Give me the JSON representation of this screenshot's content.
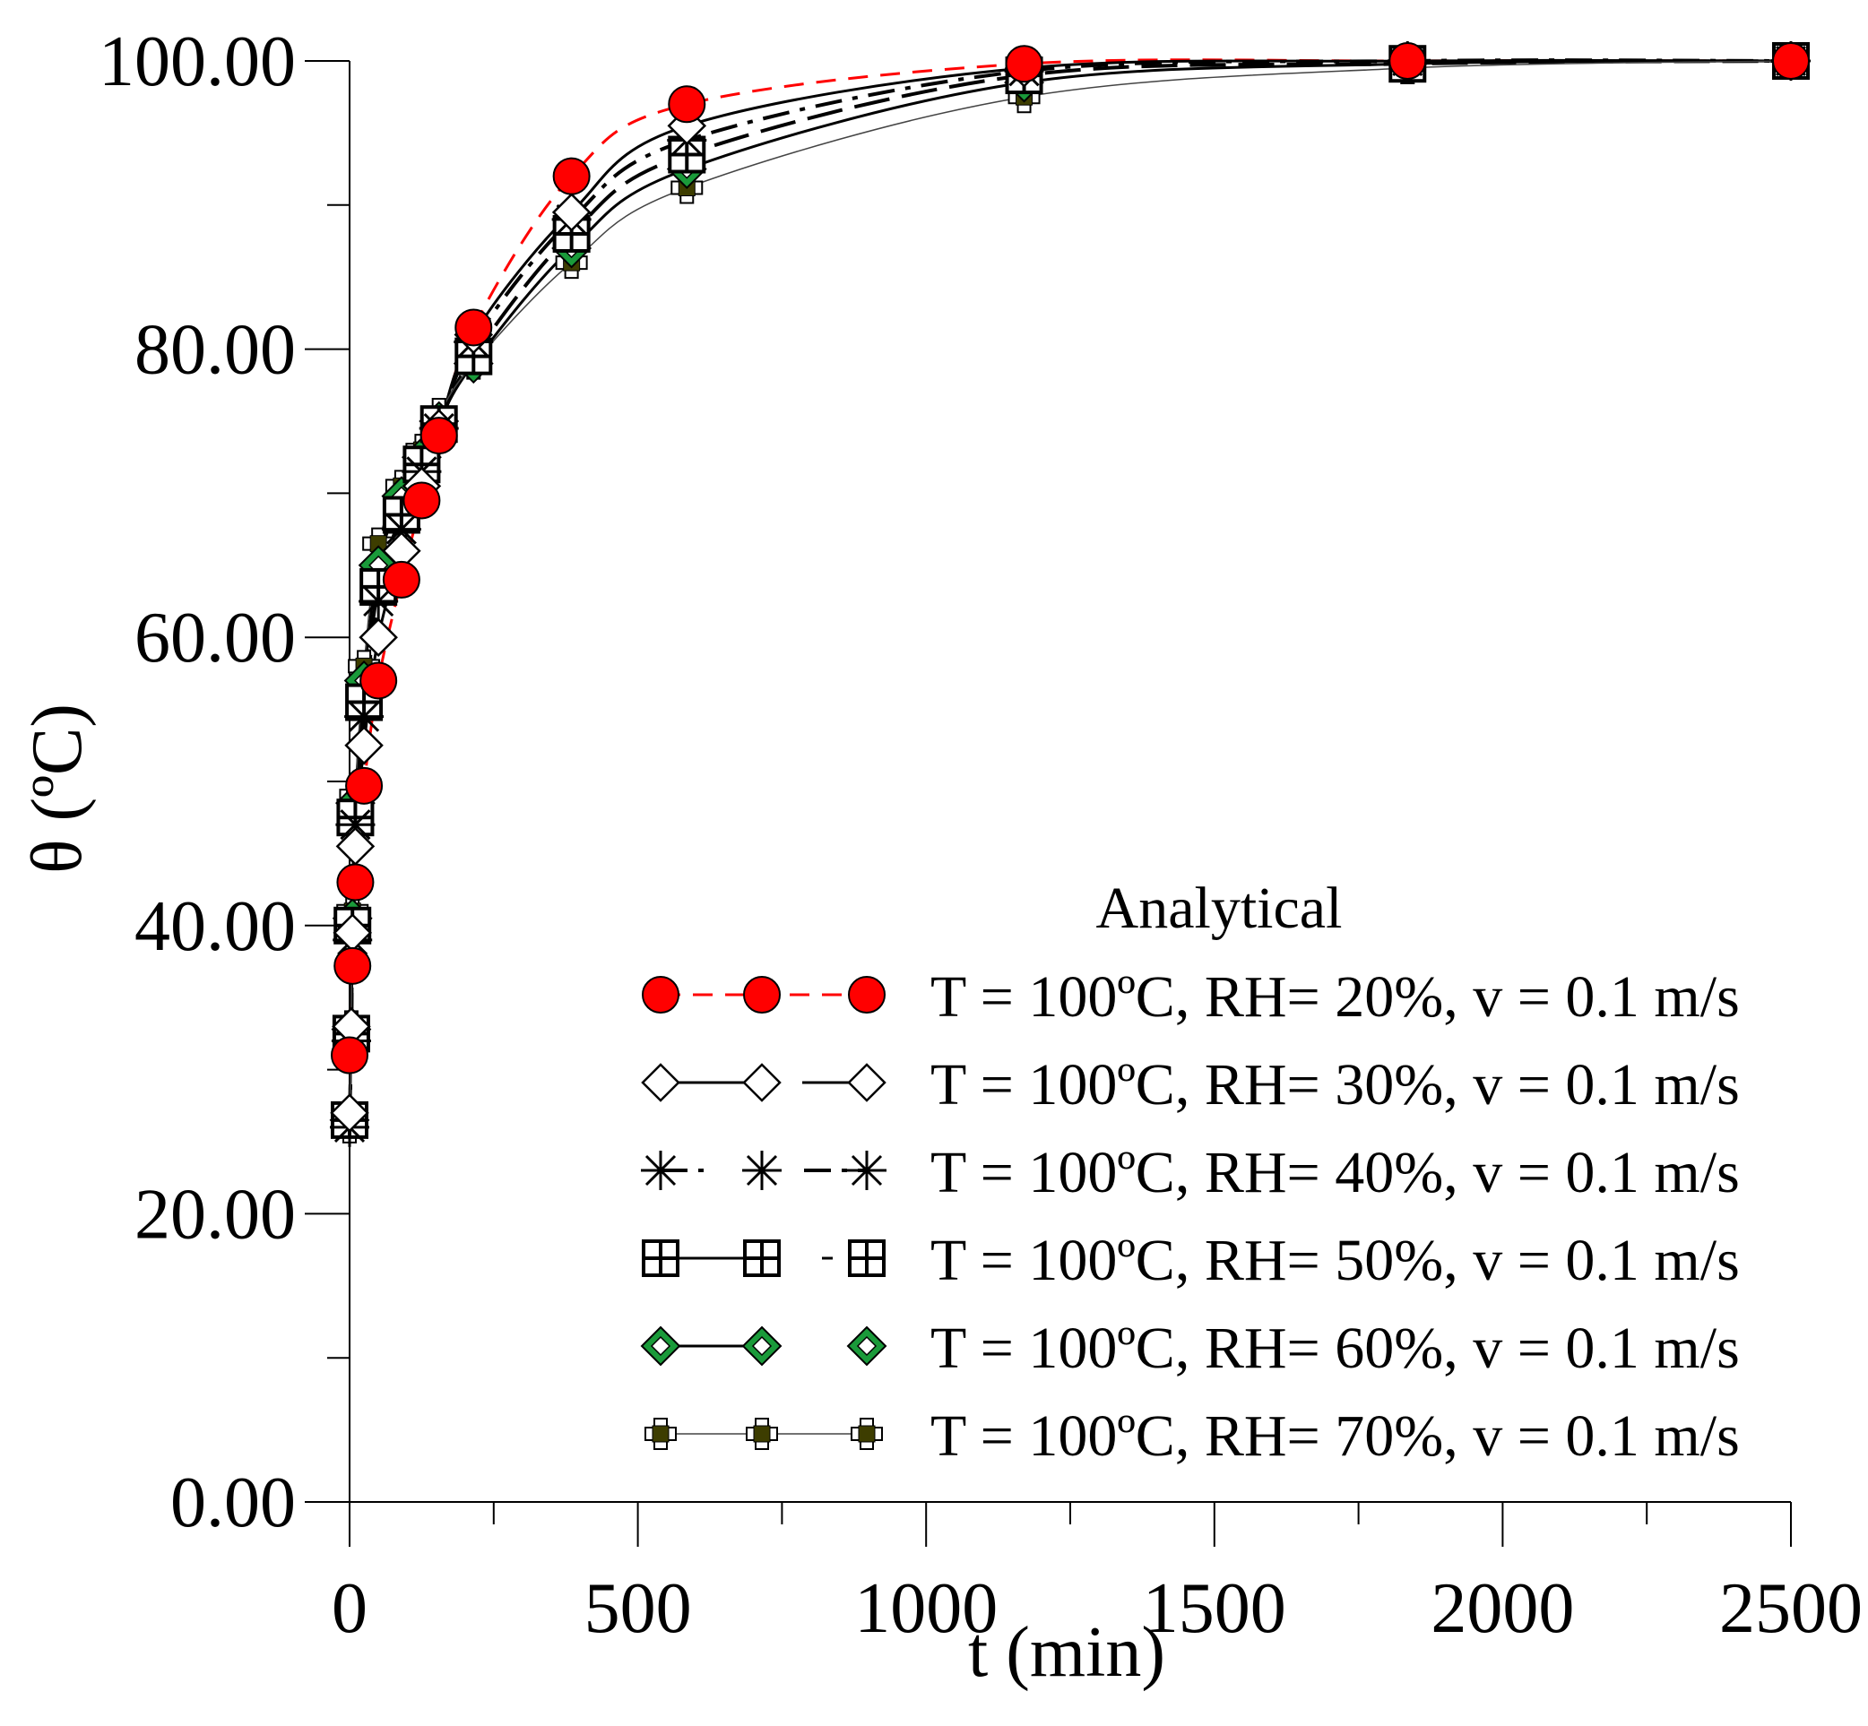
{
  "chart_data": {
    "type": "line",
    "title": "",
    "xlabel": "t (min)",
    "ylabel": "θ (ºC)",
    "xlim": [
      0,
      2500
    ],
    "ylim": [
      0,
      100
    ],
    "x_ticks": [
      0,
      500,
      1000,
      1500,
      2000,
      2500
    ],
    "x_tick_labels": [
      "0",
      "500",
      "1000",
      "1500",
      "2000",
      "2500"
    ],
    "y_ticks": [
      0,
      20,
      40,
      60,
      80,
      100
    ],
    "y_tick_labels": [
      "0.00",
      "20.00",
      "40.00",
      "60.00",
      "80.00",
      "100.00"
    ],
    "grid": false,
    "legend": {
      "title": "Analytical",
      "placement": "bottom-right"
    },
    "series": [
      {
        "name": "T = 100ºC,  RH= 20%,  v = 0.1 m/s",
        "marker": "circle-filled",
        "line": "dashed",
        "color": "#ff0000",
        "points": [
          [
            0,
            31
          ],
          [
            5,
            37.2
          ],
          [
            10,
            43
          ],
          [
            25,
            49.7
          ],
          [
            50,
            57
          ],
          [
            90,
            64
          ],
          [
            125,
            69.5
          ],
          [
            155,
            74
          ],
          [
            215,
            81.5
          ],
          [
            385,
            92
          ],
          [
            585,
            97
          ],
          [
            1170,
            99.8
          ],
          [
            1835,
            100
          ],
          [
            2500,
            100
          ]
        ]
      },
      {
        "name": "T = 100ºC,  RH= 30%,  v = 0.1 m/s",
        "marker": "diamond-open",
        "line": "solid",
        "color": "#ffffff",
        "points": [
          [
            0,
            27
          ],
          [
            3,
            33
          ],
          [
            5,
            39.5
          ],
          [
            10,
            45.5
          ],
          [
            25,
            52.5
          ],
          [
            50,
            60
          ],
          [
            90,
            66
          ],
          [
            125,
            70.5
          ],
          [
            155,
            74.5
          ],
          [
            215,
            81
          ],
          [
            385,
            89.5
          ],
          [
            585,
            95.5
          ],
          [
            1170,
            99.5
          ],
          [
            1835,
            100
          ],
          [
            2500,
            100
          ]
        ]
      },
      {
        "name": "T = 100ºC,  RH= 40%,  v = 0.1 m/s",
        "marker": "asterisk",
        "line": "dashdot",
        "color": "#000000",
        "points": [
          [
            0,
            26
          ],
          [
            3,
            32
          ],
          [
            5,
            39
          ],
          [
            10,
            47
          ],
          [
            25,
            54.5
          ],
          [
            50,
            62.5
          ],
          [
            90,
            67.5
          ],
          [
            125,
            71.5
          ],
          [
            155,
            74.5
          ],
          [
            215,
            80.5
          ],
          [
            385,
            89
          ],
          [
            585,
            94.5
          ],
          [
            1170,
            99.3
          ],
          [
            1835,
            100
          ],
          [
            2500,
            100
          ]
        ]
      },
      {
        "name": "T = 100ºC,  RH= 50%,  v = 0.1 m/s",
        "marker": "square-cross",
        "line": "longdash",
        "color": "#ffffff",
        "points": [
          [
            0,
            26.5
          ],
          [
            3,
            32.5
          ],
          [
            5,
            40
          ],
          [
            10,
            47.5
          ],
          [
            25,
            55.5
          ],
          [
            50,
            63.5
          ],
          [
            90,
            68.5
          ],
          [
            125,
            72
          ],
          [
            155,
            74.8
          ],
          [
            215,
            79.5
          ],
          [
            385,
            88
          ],
          [
            585,
            93.5
          ],
          [
            1170,
            99
          ],
          [
            1835,
            99.8
          ],
          [
            2500,
            100
          ]
        ]
      },
      {
        "name": "T = 100ºC,  RH= 60%,  v = 0.1 m/s",
        "marker": "diamond-green",
        "line": "solid",
        "color": "#1a9a3a",
        "points": [
          [
            0,
            26.5
          ],
          [
            3,
            32.8
          ],
          [
            5,
            40.5
          ],
          [
            10,
            48.5
          ],
          [
            25,
            57
          ],
          [
            50,
            65
          ],
          [
            90,
            69.8
          ],
          [
            125,
            72.5
          ],
          [
            155,
            75
          ],
          [
            215,
            79
          ],
          [
            385,
            87
          ],
          [
            585,
            92.5
          ],
          [
            1170,
            98.5
          ],
          [
            1835,
            99.8
          ],
          [
            2500,
            100
          ]
        ]
      },
      {
        "name": "T = 100ºC,  RH= 70%,  v = 0.1 m/s",
        "marker": "square-plus-olive",
        "line": "thin",
        "color": "#3d3d00",
        "points": [
          [
            0,
            26
          ],
          [
            3,
            33
          ],
          [
            5,
            41
          ],
          [
            10,
            49
          ],
          [
            25,
            58
          ],
          [
            50,
            66.5
          ],
          [
            90,
            70.5
          ],
          [
            125,
            73
          ],
          [
            155,
            75.5
          ],
          [
            215,
            79
          ],
          [
            385,
            86
          ],
          [
            585,
            91.2
          ],
          [
            1170,
            97.5
          ],
          [
            1835,
            99.5
          ],
          [
            2500,
            100
          ]
        ]
      }
    ]
  }
}
